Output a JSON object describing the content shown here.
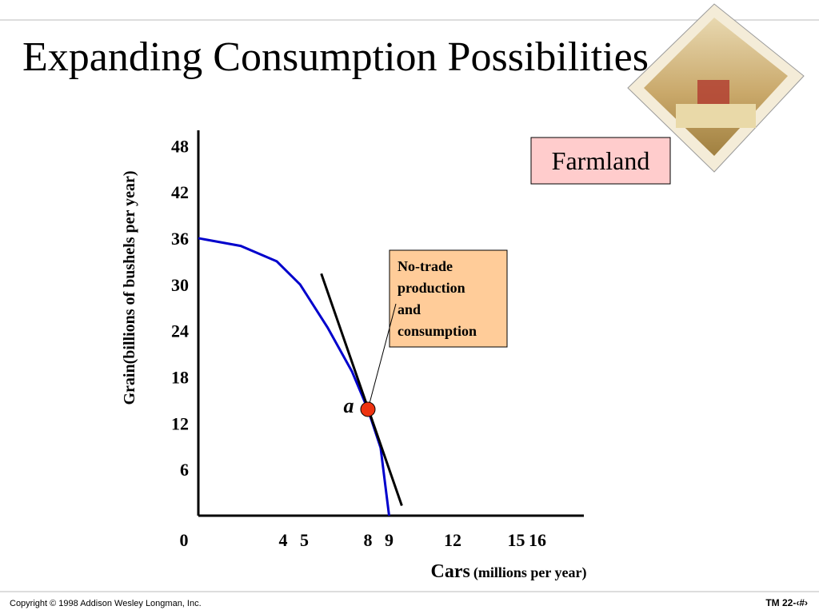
{
  "chart_data": {
    "type": "line",
    "title": "Expanding Consumption Possibilities",
    "x_label": "Cars",
    "x_label_unit": "(millions per year)",
    "y_label": "Grain(billions of bushels per year)",
    "xlim": [
      0,
      18
    ],
    "ylim": [
      0,
      50
    ],
    "xticks": [
      0,
      4,
      5,
      8,
      9,
      12,
      15,
      16
    ],
    "yticks": [
      6,
      12,
      18,
      24,
      30,
      36,
      42,
      48
    ],
    "curve": {
      "color": "#0000cc",
      "x": [
        0,
        2,
        3.7,
        4.8,
        6.1,
        7.25,
        8,
        8.6,
        9
      ],
      "y": [
        36,
        35,
        33,
        30,
        24.4,
        18.7,
        13.8,
        8.8,
        0
      ]
    },
    "trade_line": {
      "color": "#000000",
      "x": [
        5.8,
        9.6
      ],
      "y": [
        31.4,
        1.3
      ]
    },
    "point": {
      "label": "a",
      "color": "#ee3311",
      "x": 8,
      "y": 13.8
    },
    "region_label": "Farmland",
    "callout": [
      "No-trade",
      "production",
      "and",
      "consumption"
    ]
  },
  "footer": {
    "copyright": "Copyright © 1998 Addison Wesley Longman, Inc.",
    "slide_number": "TM 22-‹#›"
  }
}
